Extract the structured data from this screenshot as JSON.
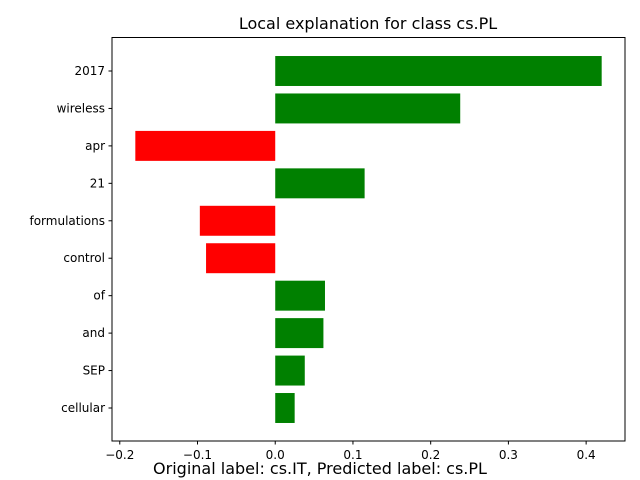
{
  "chart_data": {
    "type": "bar",
    "orientation": "horizontal",
    "title": "Local explanation for class cs.PL",
    "xlabel": "",
    "ylabel": "",
    "categories": [
      "2017",
      "wireless",
      "apr",
      "21",
      "formulations",
      "control",
      "of",
      "and",
      "SEP",
      "cellular"
    ],
    "values": [
      0.42,
      0.238,
      -0.18,
      0.115,
      -0.097,
      -0.089,
      0.064,
      0.062,
      0.038,
      0.025
    ],
    "xlim": [
      -0.21,
      0.45
    ],
    "xticks": [
      -0.2,
      -0.1,
      0.0,
      0.1,
      0.2,
      0.3,
      0.4
    ],
    "xtick_labels": [
      "−0.2",
      "−0.1",
      "0.0",
      "0.1",
      "0.2",
      "0.3",
      "0.4"
    ],
    "grid": false,
    "colors": {
      "positive": "#008000",
      "negative": "#ff0000",
      "axis": "#000000",
      "background": "#ffffff"
    }
  },
  "caption": "Original label: cs.IT, Predicted label: cs.PL"
}
